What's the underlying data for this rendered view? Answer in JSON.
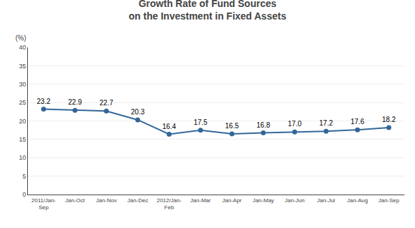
{
  "chart_data": {
    "type": "line",
    "title": "Growth Rate of Fund Sources\non the Investment in Fixed Assets",
    "ylabel": "(%)",
    "categories": [
      "2011/Jan-\nSep",
      "Jan-Oct",
      "Jan-Nov",
      "Jan-Dec",
      "2012/Jan-\nFeb",
      "Jan-Mar",
      "Jan-Apr",
      "Jan-May",
      "Jan-Jun",
      "Jan-Jul",
      "Jan-Aug",
      "Jan-Sep"
    ],
    "values": [
      23.2,
      22.9,
      22.7,
      20.3,
      16.4,
      17.5,
      16.5,
      16.8,
      17.0,
      17.2,
      17.6,
      18.2
    ],
    "value_labels": [
      "23.2",
      "22.9",
      "22.7",
      "20.3",
      "16.4",
      "17.5",
      "16.5",
      "16.8",
      "17.0",
      "17.2",
      "17.6",
      "18.2"
    ],
    "color": "#336699",
    "marker": "circle",
    "ylim": [
      0,
      40
    ],
    "yticks": [
      0,
      5,
      10,
      15,
      20,
      25,
      30,
      35,
      40
    ],
    "grid": true,
    "data_labels": true
  }
}
